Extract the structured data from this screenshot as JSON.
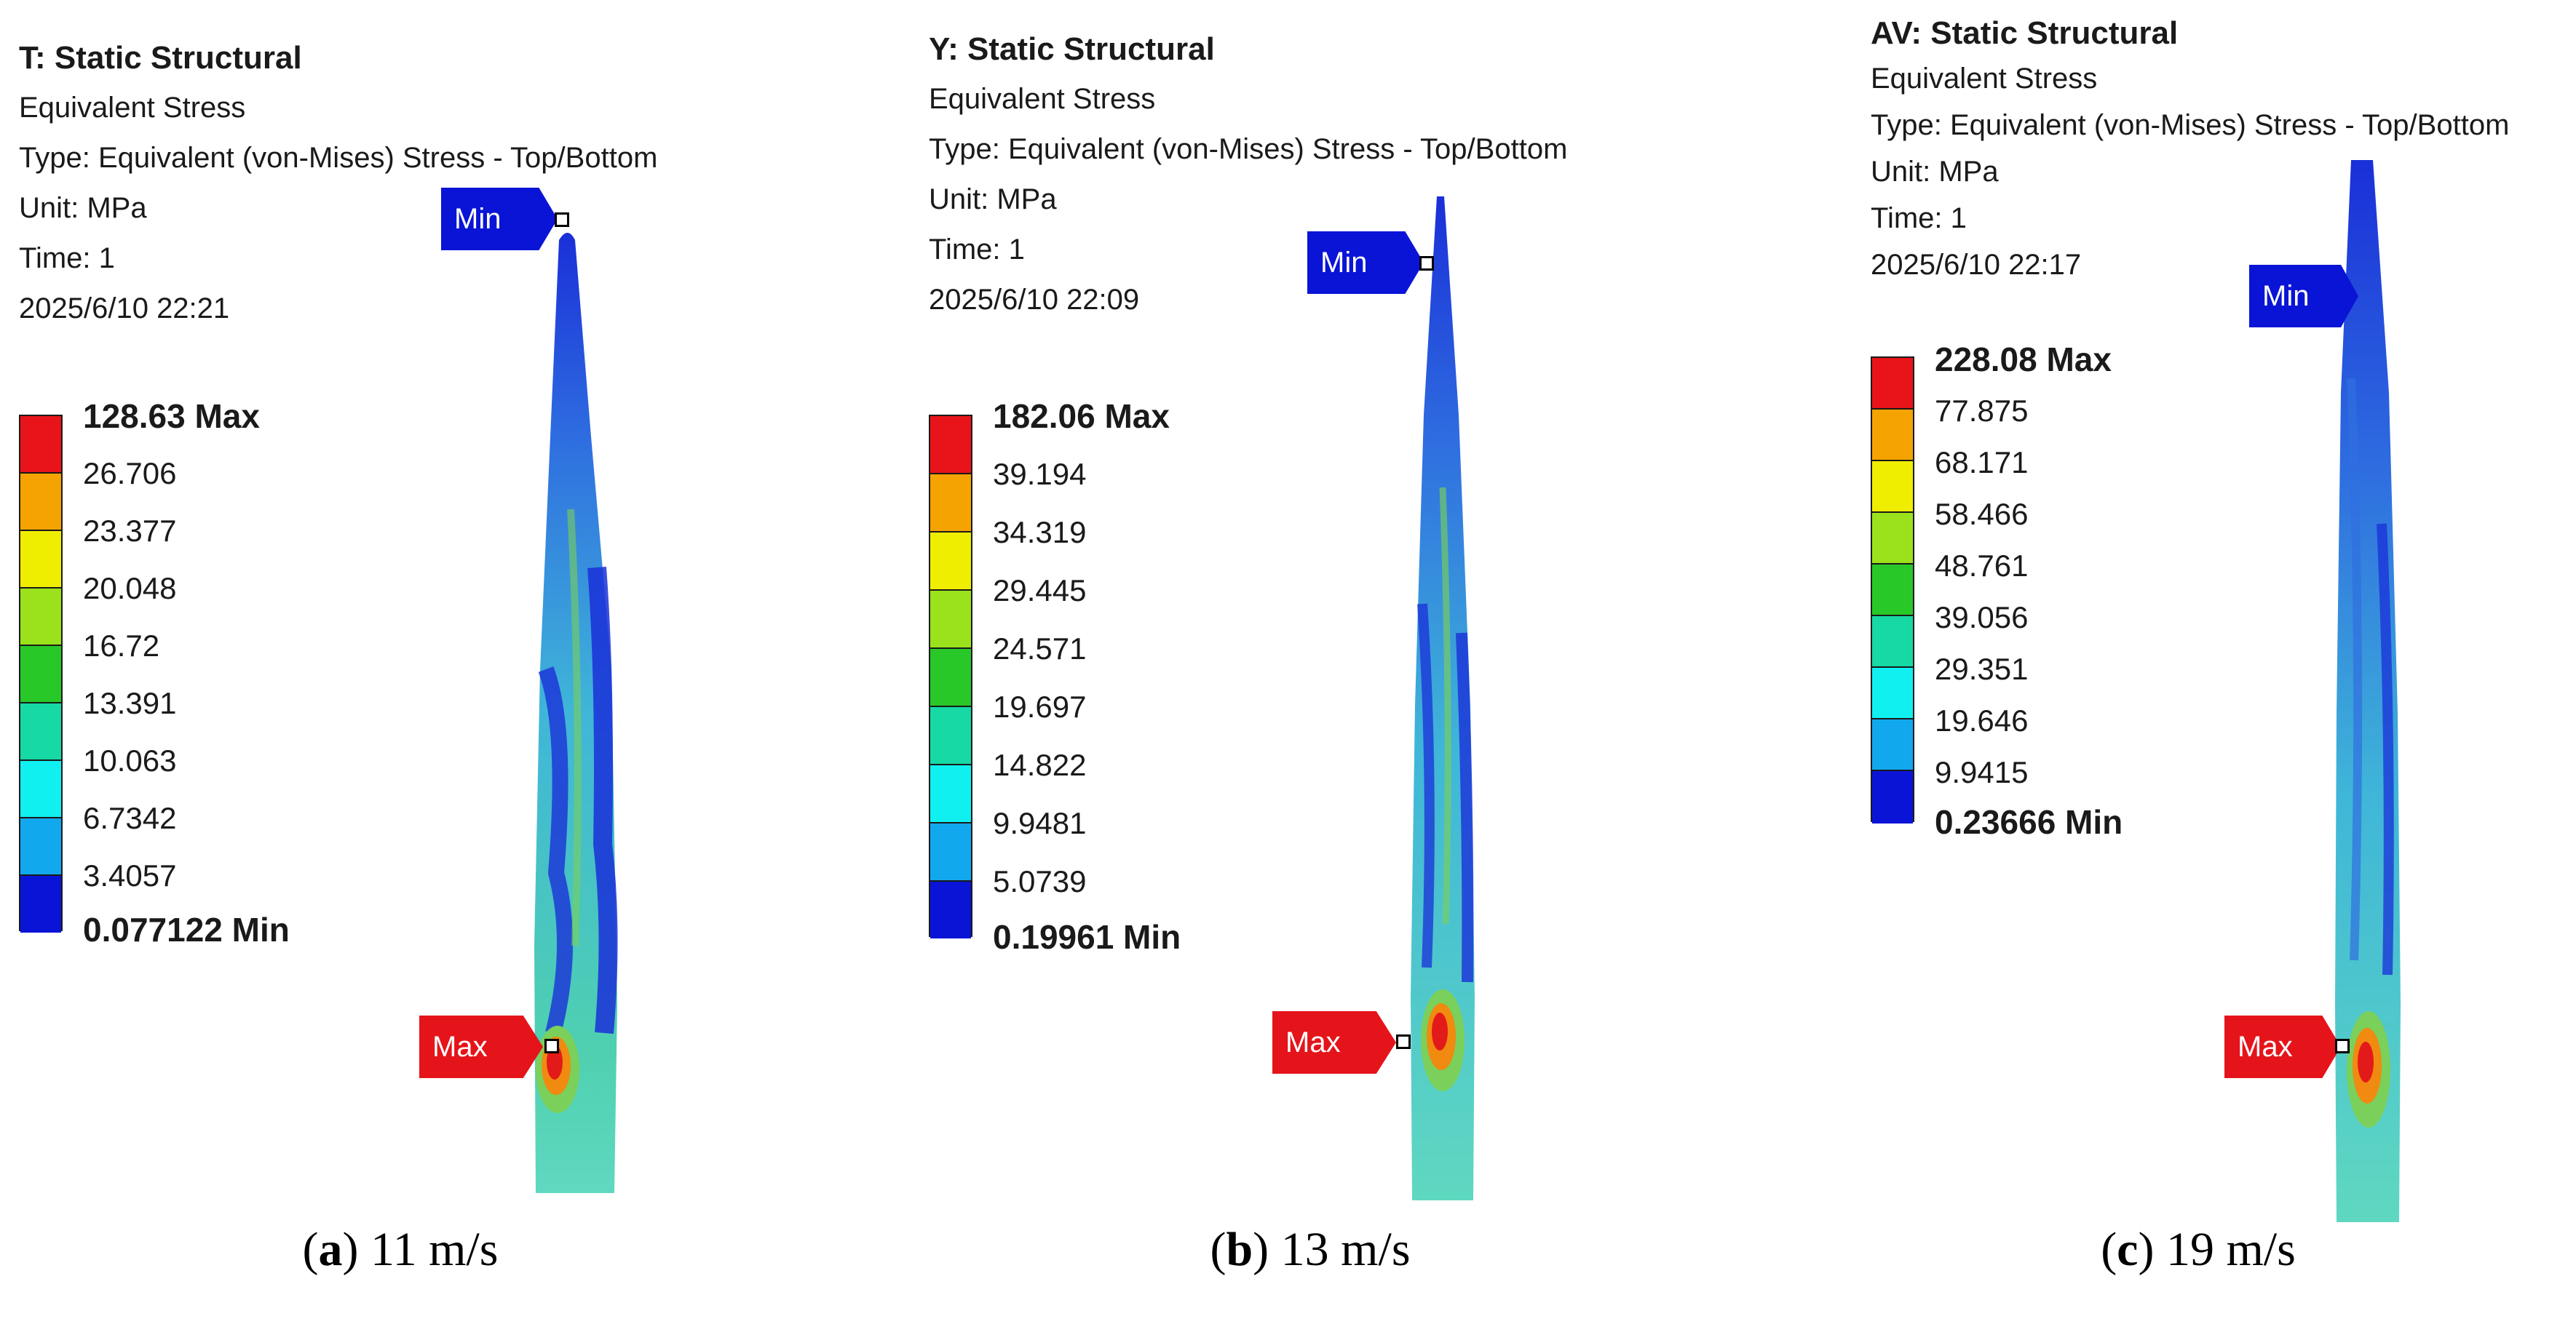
{
  "panels": [
    {
      "id": "a",
      "title": "T: Static Structural",
      "result": "Equivalent Stress",
      "type": "Type: Equivalent (von-Mises) Stress - Top/Bottom",
      "unit": "Unit: MPa",
      "time": "Time: 1",
      "timestamp": "2025/6/10 22:21",
      "legend": [
        "128.63 Max",
        "26.706",
        "23.377",
        "20.048",
        "16.72",
        "13.391",
        "10.063",
        "6.7342",
        "3.4057",
        "0.077122 Min"
      ],
      "min_tag": "Min",
      "max_tag": "Max",
      "caption_letter": "a",
      "caption_text": "11 m/s"
    },
    {
      "id": "b",
      "title": "Y: Static Structural",
      "result": "Equivalent Stress",
      "type": "Type: Equivalent (von-Mises) Stress - Top/Bottom",
      "unit": "Unit: MPa",
      "time": "Time: 1",
      "timestamp": "2025/6/10 22:09",
      "legend": [
        "182.06 Max",
        "39.194",
        "34.319",
        "29.445",
        "24.571",
        "19.697",
        "14.822",
        "9.9481",
        "5.0739",
        "0.19961 Min"
      ],
      "min_tag": "Min",
      "max_tag": "Max",
      "caption_letter": "b",
      "caption_text": "13 m/s"
    },
    {
      "id": "c",
      "title": "AV: Static Structural",
      "result": "Equivalent Stress",
      "type": "Type: Equivalent (von-Mises) Stress - Top/Bottom",
      "unit": "Unit: MPa",
      "time": "Time: 1",
      "timestamp": "2025/6/10 22:17",
      "legend": [
        "228.08 Max",
        "77.875",
        "68.171",
        "58.466",
        "48.761",
        "39.056",
        "29.351",
        "19.646",
        "9.9415",
        "0.23666 Min"
      ],
      "min_tag": "Min",
      "max_tag": "Max",
      "caption_letter": "c",
      "caption_text": "19 m/s"
    }
  ],
  "legend_colors": [
    "#e8141a",
    "#f5a300",
    "#f0ee00",
    "#9be21c",
    "#28c828",
    "#16d9a5",
    "#10f0f0",
    "#12a8ee",
    "#0a14d6"
  ],
  "contour_colors": {
    "dark_blue": "#1a2fd8",
    "mid_blue": "#2f6fe0",
    "cyan": "#3fb6d8",
    "teal": "#4fd0b0",
    "green": "#7ad05a",
    "yellow": "#e8e020",
    "orange": "#f08a10",
    "red": "#e31a1a"
  }
}
